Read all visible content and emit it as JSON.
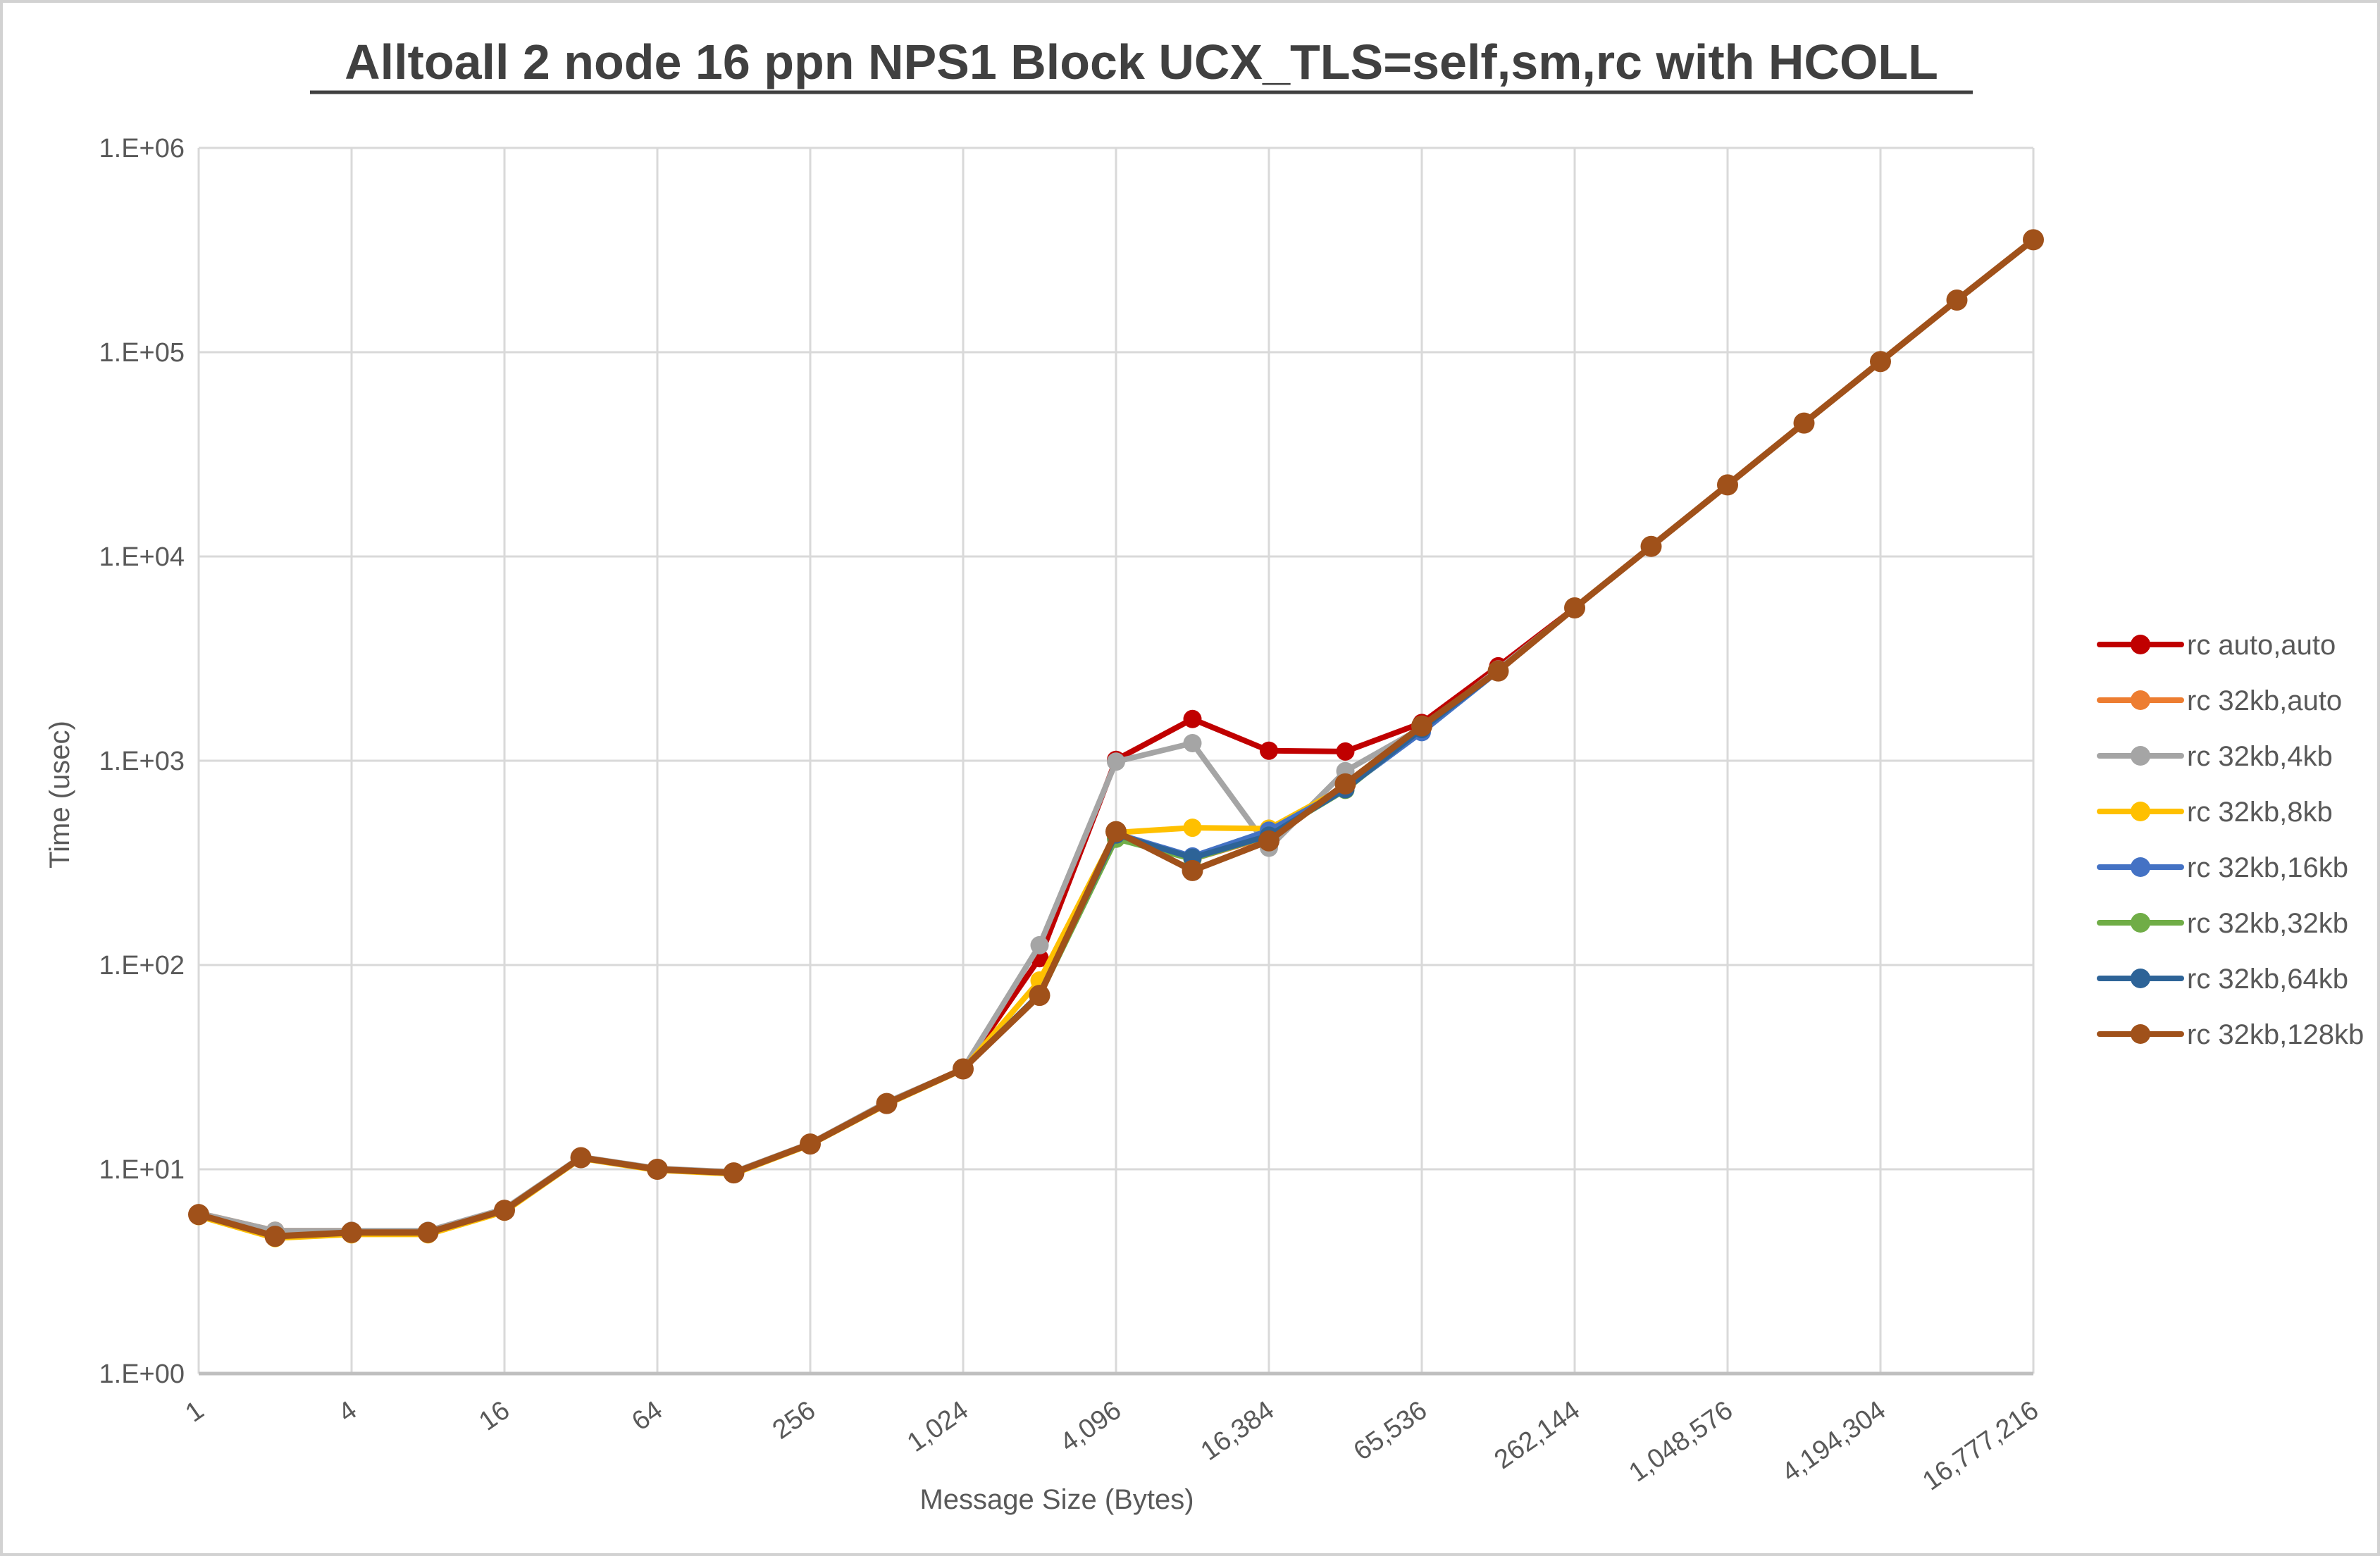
{
  "chart_data": {
    "type": "line",
    "title": "Alltoall 2 node 16 ppn NPS1 Block UCX_TLS=self,sm,rc with HCOLL",
    "xlabel": "Message Size (Bytes)",
    "ylabel": "Time (usec)",
    "x_scale": "log2-categories",
    "y_scale": "log10",
    "y_exp_min": 0,
    "y_exp_max": 6,
    "grid": true,
    "legend_position": "right",
    "y_tick_labels": [
      "1.E+00",
      "1.E+01",
      "1.E+02",
      "1.E+03",
      "1.E+04",
      "1.E+05",
      "1.E+06"
    ],
    "x_tick_labels": [
      "1",
      "4",
      "16",
      "64",
      "256",
      "1,024",
      "4,096",
      "16,384",
      "65,536",
      "262,144",
      "1,048,576",
      "4,194,304",
      "16,777,216"
    ],
    "x_categories": [
      1,
      2,
      4,
      8,
      16,
      32,
      64,
      128,
      256,
      512,
      1024,
      2048,
      4096,
      8192,
      16384,
      32768,
      65536,
      131072,
      262144,
      524288,
      1048576,
      2097152,
      4194304,
      8388608,
      16777216
    ],
    "series": [
      {
        "name": "rc auto,auto",
        "color": "#C00000",
        "values": [
          6.0,
          4.7,
          4.9,
          4.9,
          6.3,
          11.4,
          10.0,
          9.6,
          13.3,
          21,
          31,
          108,
          1010,
          1600,
          1120,
          1110,
          1530,
          2900,
          5600,
          11200,
          22400,
          45000,
          90000,
          180000,
          355000
        ]
      },
      {
        "name": "rc 32kb,auto",
        "color": "#ED7D31",
        "values": [
          6.1,
          5.0,
          5.0,
          4.9,
          6.3,
          11.4,
          10.0,
          9.6,
          13.3,
          21,
          31,
          72,
          440,
          330,
          425,
          760,
          1470,
          2750,
          5600,
          11200,
          22400,
          45000,
          90000,
          180000,
          355000
        ]
      },
      {
        "name": "rc 32kb,4kb",
        "color": "#A5A5A5",
        "values": [
          6.1,
          5.0,
          5.0,
          5.0,
          6.4,
          11.5,
          10.1,
          9.7,
          13.4,
          21.3,
          31,
          125,
          990,
          1220,
          375,
          890,
          1450,
          2800,
          5600,
          11200,
          22400,
          45000,
          90000,
          180000,
          355000
        ]
      },
      {
        "name": "rc 32kb,8kb",
        "color": "#FFC000",
        "values": [
          5.9,
          4.6,
          4.8,
          4.8,
          6.2,
          11.3,
          9.9,
          9.5,
          13.2,
          20.8,
          30.8,
          84,
          445,
          470,
          465,
          745,
          1450,
          2750,
          5600,
          11200,
          22400,
          45000,
          90000,
          180000,
          355000
        ]
      },
      {
        "name": "rc 32kb,16kb",
        "color": "#4472C4",
        "values": [
          6.0,
          4.7,
          4.9,
          4.9,
          6.3,
          11.4,
          10.0,
          9.6,
          13.3,
          21,
          31,
          72,
          440,
          340,
          455,
          730,
          1380,
          2750,
          5600,
          11200,
          22400,
          45000,
          90000,
          180000,
          355000
        ]
      },
      {
        "name": "rc 32kb,32kb",
        "color": "#70AD47",
        "values": [
          6.0,
          4.7,
          4.9,
          4.9,
          6.3,
          11.4,
          10.0,
          9.6,
          13.3,
          21,
          31,
          71,
          415,
          330,
          430,
          720,
          1440,
          2750,
          5600,
          11200,
          22400,
          45000,
          90000,
          180000,
          355000
        ]
      },
      {
        "name": "rc 32kb,64kb",
        "color": "#2D6397",
        "values": [
          6.0,
          4.7,
          4.9,
          4.9,
          6.3,
          11.4,
          10.0,
          9.6,
          13.3,
          21,
          31,
          72,
          435,
          335,
          430,
          725,
          1430,
          2750,
          5600,
          11200,
          22400,
          45000,
          90000,
          180000,
          355000
        ]
      },
      {
        "name": "rc 32kb,128kb",
        "color": "#A0511A",
        "values": [
          6.0,
          4.7,
          4.9,
          4.9,
          6.3,
          11.4,
          10.0,
          9.6,
          13.3,
          21,
          31,
          71,
          450,
          290,
          405,
          770,
          1480,
          2750,
          5600,
          11200,
          22400,
          45000,
          90000,
          180000,
          355000
        ]
      }
    ]
  },
  "style": {
    "title_color": "#404040",
    "tick_text_color": "#595959",
    "legend_text_color": "#595959",
    "grid_color": "#D9D9D9",
    "axis_line_color": "#BFBFBF",
    "background": "#FFFFFF",
    "border_color": "#D2D2D2"
  }
}
